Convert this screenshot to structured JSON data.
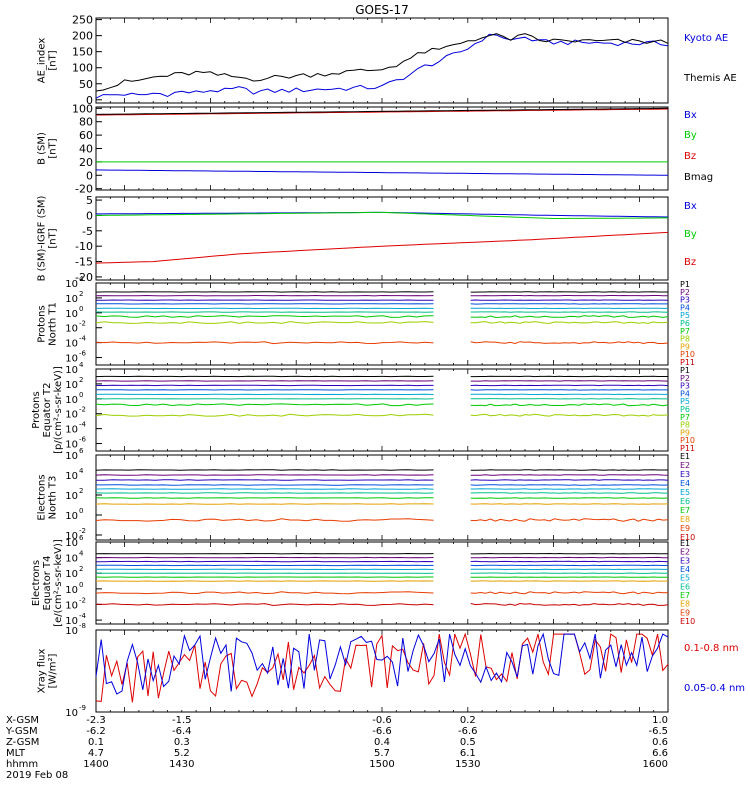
{
  "title": "GOES-17",
  "colors": {
    "blue": "#0000dd",
    "green": "#00cc00",
    "red": "#dd0000",
    "black": "#000000",
    "gap": "#ffffff"
  },
  "chart_data": [
    {
      "id": "ae",
      "type": "line",
      "ylabel": [
        "AE_index",
        "[nT]"
      ],
      "yticks": [
        "250",
        "200",
        "150",
        "100",
        "50",
        "0"
      ],
      "ylim": [
        -10,
        255
      ],
      "series": [
        {
          "name": "Kyoto AE",
          "color": "#0000dd",
          "x": [
            1400,
            1405,
            1410,
            1415,
            1420,
            1425,
            1430,
            1435,
            1440,
            1445,
            1450,
            1455,
            1500,
            1505,
            1510,
            1515,
            1520,
            1525,
            1530,
            1535,
            1540,
            1545,
            1550,
            1555,
            1600
          ],
          "y": [
            10,
            15,
            18,
            12,
            20,
            18,
            25,
            22,
            30,
            28,
            35,
            25,
            40,
            60,
            80,
            105,
            120,
            140,
            160,
            190,
            205,
            185,
            195,
            180,
            175
          ]
        },
        {
          "name": "Themis AE",
          "color": "#000000",
          "x": [
            1400,
            1405,
            1410,
            1415,
            1420,
            1425,
            1430,
            1435,
            1440,
            1445,
            1450,
            1455,
            1500,
            1505,
            1510,
            1515,
            1520,
            1525,
            1530,
            1535,
            1540,
            1545,
            1550,
            1555,
            1600
          ],
          "y": [
            35,
            40,
            55,
            60,
            70,
            75,
            80,
            85,
            80,
            75,
            70,
            65,
            95,
            110,
            130,
            150,
            155,
            170,
            185,
            195,
            200,
            190,
            200,
            185,
            180
          ]
        }
      ]
    },
    {
      "id": "bsm",
      "type": "line",
      "ylabel": [
        "B (SM)",
        "[nT]"
      ],
      "yticks": [
        "100",
        "80",
        "60",
        "40",
        "20",
        "0",
        "-20"
      ],
      "ylim": [
        -22,
        102
      ],
      "series": [
        {
          "name": "Bx",
          "color": "#0000dd",
          "x": [
            1400,
            1600
          ],
          "y": [
            8,
            0
          ]
        },
        {
          "name": "By",
          "color": "#00cc00",
          "x": [
            1400,
            1600
          ],
          "y": [
            20,
            20
          ]
        },
        {
          "name": "Bz",
          "color": "#dd0000",
          "x": [
            1400,
            1600
          ],
          "y": [
            90,
            99
          ]
        },
        {
          "name": "Bmag",
          "color": "#000000",
          "x": [
            1400,
            1600
          ],
          "y": [
            91,
            100
          ]
        }
      ]
    },
    {
      "id": "bigrf",
      "type": "line",
      "ylabel": [
        "B (SM)-IGRF (SM)",
        "[nT]"
      ],
      "yticks": [
        "5",
        "0",
        "-5",
        "-10",
        "-15",
        "-20"
      ],
      "ylim": [
        -21,
        6
      ],
      "series": [
        {
          "name": "Bx",
          "color": "#0000dd",
          "x": [
            1400,
            1500,
            1560,
            1600
          ],
          "y": [
            0.5,
            1,
            0,
            -0.5
          ]
        },
        {
          "name": "By",
          "color": "#00cc00",
          "x": [
            1400,
            1500,
            1560,
            1600
          ],
          "y": [
            0,
            1,
            -1,
            -0.8
          ]
        },
        {
          "name": "Bz",
          "color": "#dd0000",
          "x": [
            1400,
            1420,
            1450,
            1500,
            1550,
            1600
          ],
          "y": [
            -15.5,
            -15,
            -12.5,
            -10,
            -8,
            -5.5
          ]
        }
      ]
    },
    {
      "id": "p1",
      "type": "line",
      "log": true,
      "ylabel": [
        "Protons",
        "North T1"
      ],
      "ytick_exps": [
        "4",
        "2",
        "0",
        "-2",
        "-4",
        "-6"
      ],
      "yexp": [
        -7,
        4
      ],
      "gap": [
        1518,
        1531
      ],
      "legend": [
        "P1",
        "P2",
        "P3",
        "P4",
        "P5",
        "P6",
        "P7",
        "P8",
        "P9",
        "P10",
        "P11"
      ],
      "legend_colors": [
        "#000000",
        "#6a0078",
        "#2d00bb",
        "#0050dd",
        "#00a6d6",
        "#00c08c",
        "#00c800",
        "#9ccf00",
        "#e2a000",
        "#e83c00",
        "#c80000"
      ],
      "levels": [
        2.8,
        2.3,
        1.7,
        1.2,
        0.6,
        0.1,
        -0.5,
        -1.3,
        null,
        -4.0,
        null
      ]
    },
    {
      "id": "p2",
      "type": "line",
      "log": true,
      "ylabel": [
        "Protons",
        "Equator T2",
        "[p/(cm²-s-sr-keV)]"
      ],
      "ytick_exps": [
        "4",
        "2",
        "0",
        "-2",
        "-4",
        "-6"
      ],
      "yexp": [
        -7,
        4
      ],
      "gap": [
        1518,
        1531
      ],
      "legend": [
        "P1",
        "P2",
        "P3",
        "P4",
        "P5",
        "P6",
        "P7",
        "P8",
        "P9",
        "P10",
        "P11"
      ],
      "legend_colors": [
        "#000000",
        "#6a0078",
        "#2d00bb",
        "#0050dd",
        "#00a6d6",
        "#00c08c",
        "#00c800",
        "#9ccf00",
        "#e2a000",
        "#e83c00",
        "#c80000"
      ],
      "levels": [
        3.0,
        2.4,
        1.8,
        1.2,
        0.6,
        0.0,
        -0.8,
        -2.2,
        null,
        null,
        null
      ]
    },
    {
      "id": "e3",
      "type": "line",
      "log": true,
      "ylabel": [
        "Electrons",
        "North T3"
      ],
      "ytick_exps": [
        "6",
        "4",
        "2",
        "0",
        "-2"
      ],
      "yexp": [
        -2.5,
        6
      ],
      "gap": [
        1518,
        1531
      ],
      "legend": [
        "E1",
        "E2",
        "E3",
        "E4",
        "E5",
        "E6",
        "E7",
        "E8",
        "E9",
        "E10"
      ],
      "legend_colors": [
        "#000000",
        "#6a0078",
        "#2d00bb",
        "#0050dd",
        "#00a6d6",
        "#00c08c",
        "#00c800",
        "#e2a000",
        "#e83c00",
        "#c80000"
      ],
      "levels": [
        4.5,
        4.0,
        3.5,
        3.0,
        2.6,
        2.2,
        1.7,
        1.1,
        -0.5,
        null
      ]
    },
    {
      "id": "e4",
      "type": "line",
      "log": true,
      "ylabel": [
        "Electrons",
        "Equator T4",
        "[e/(cm²-s-sr-keV)]"
      ],
      "ytick_exps": [
        "6",
        "4",
        "2",
        "0",
        "-2",
        "-4"
      ],
      "yexp": [
        -4.5,
        6
      ],
      "gap": [
        1518,
        1531
      ],
      "legend": [
        "E1",
        "E2",
        "E3",
        "E4",
        "E5",
        "E6",
        "E7",
        "E8",
        "E9",
        "E10"
      ],
      "legend_colors": [
        "#000000",
        "#6a0078",
        "#2d00bb",
        "#0050dd",
        "#00a6d6",
        "#00c08c",
        "#00c800",
        "#e2a000",
        "#e83c00",
        "#c80000"
      ],
      "levels": [
        4.5,
        4.0,
        3.5,
        3.0,
        2.5,
        2.0,
        1.5,
        1.0,
        -0.5,
        -2.0
      ]
    },
    {
      "id": "xray",
      "type": "line",
      "log": true,
      "ylabel": [
        "Xray flux",
        "[W/m²]"
      ],
      "ytick_labels": [
        "10",
        "10"
      ],
      "ytick_exps": [
        "-8",
        "-9"
      ],
      "yexp": [
        -9,
        -8
      ],
      "series": [
        {
          "name": "0.1-0.8 nm",
          "color": "#dd0000"
        },
        {
          "name": "0.05-0.4 nm",
          "color": "#0000dd"
        }
      ]
    }
  ],
  "xaxis": {
    "rows": [
      {
        "label": "X-GSM",
        "values": [
          "-2.3",
          "-1.5",
          "-0.6",
          "0.2",
          "1.0"
        ]
      },
      {
        "label": "Y-GSM",
        "values": [
          "-6.2",
          "-6.4",
          "-6.6",
          "-6.6",
          "-6.5"
        ]
      },
      {
        "label": "Z-GSM",
        "values": [
          "0.1",
          "0.3",
          "0.4",
          "0.5",
          "0.6"
        ]
      },
      {
        "label": "MLT",
        "values": [
          "4.7",
          "5.2",
          "5.7",
          "6.1",
          "6.6"
        ]
      },
      {
        "label": "hhmm",
        "values": [
          "1400",
          "1430",
          "1500",
          "1530",
          "1600"
        ]
      }
    ],
    "date": "2019 Feb 08",
    "range": [
      1400,
      1600
    ]
  }
}
